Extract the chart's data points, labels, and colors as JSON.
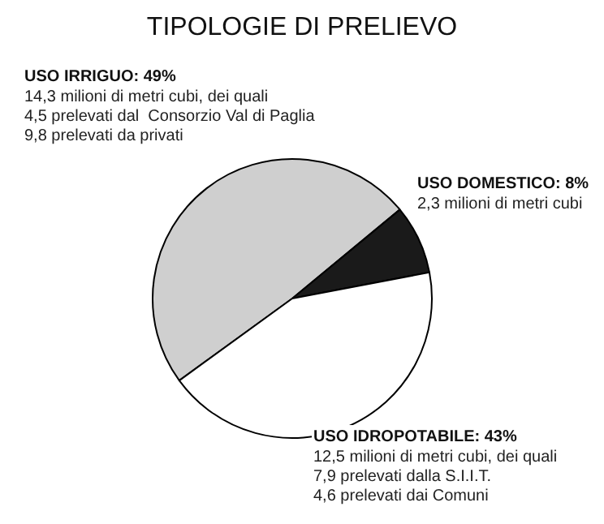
{
  "chart_data": {
    "type": "pie",
    "title": "TIPOLOGIE DI PRELIEVO",
    "categories": [
      "USO IRRIGUO",
      "USO DOMESTICO",
      "USO IDROPOTABILE"
    ],
    "values": [
      49,
      8,
      43
    ],
    "value_labels": [
      "49%",
      "8%",
      "43%"
    ],
    "colors": [
      "#cfcfcf",
      "#1a1a1a",
      "#ffffff"
    ],
    "annotations": [
      "14,3 milioni di metri cubi, dei quali\n4,5 prelevati dal  Consorzio Val di Paglia\n9,8 prelevati da privati",
      "2,3 milioni di metri cubi",
      "12,5 milioni di metri cubi, dei quali\n7,9 prelevati dalla S.I.I.T.\n4,6 prelevati dai Comuni"
    ],
    "legend": false
  }
}
